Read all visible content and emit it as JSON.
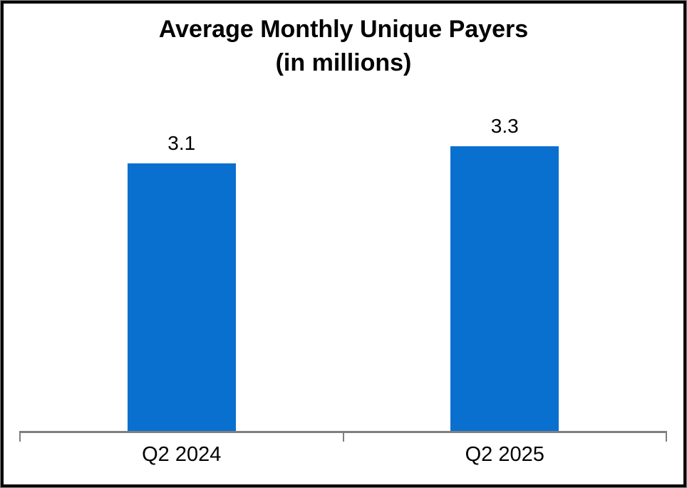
{
  "chart_data": {
    "type": "bar",
    "title": "Average Monthly Unique Payers",
    "subtitle": "(in millions)",
    "categories": [
      "Q2 2024",
      "Q2 2025"
    ],
    "values": [
      3.1,
      3.3
    ],
    "data_labels": [
      "3.1",
      "3.3"
    ],
    "xlabel": "",
    "ylabel": "",
    "ylim": [
      0,
      3.5
    ],
    "grid": false,
    "legend": false,
    "y_axis_labels_visible": false,
    "colors": {
      "bar": "#0A70D0",
      "axis": "#7F7F7F",
      "text": "#000000",
      "frame_border": "#000000"
    }
  }
}
